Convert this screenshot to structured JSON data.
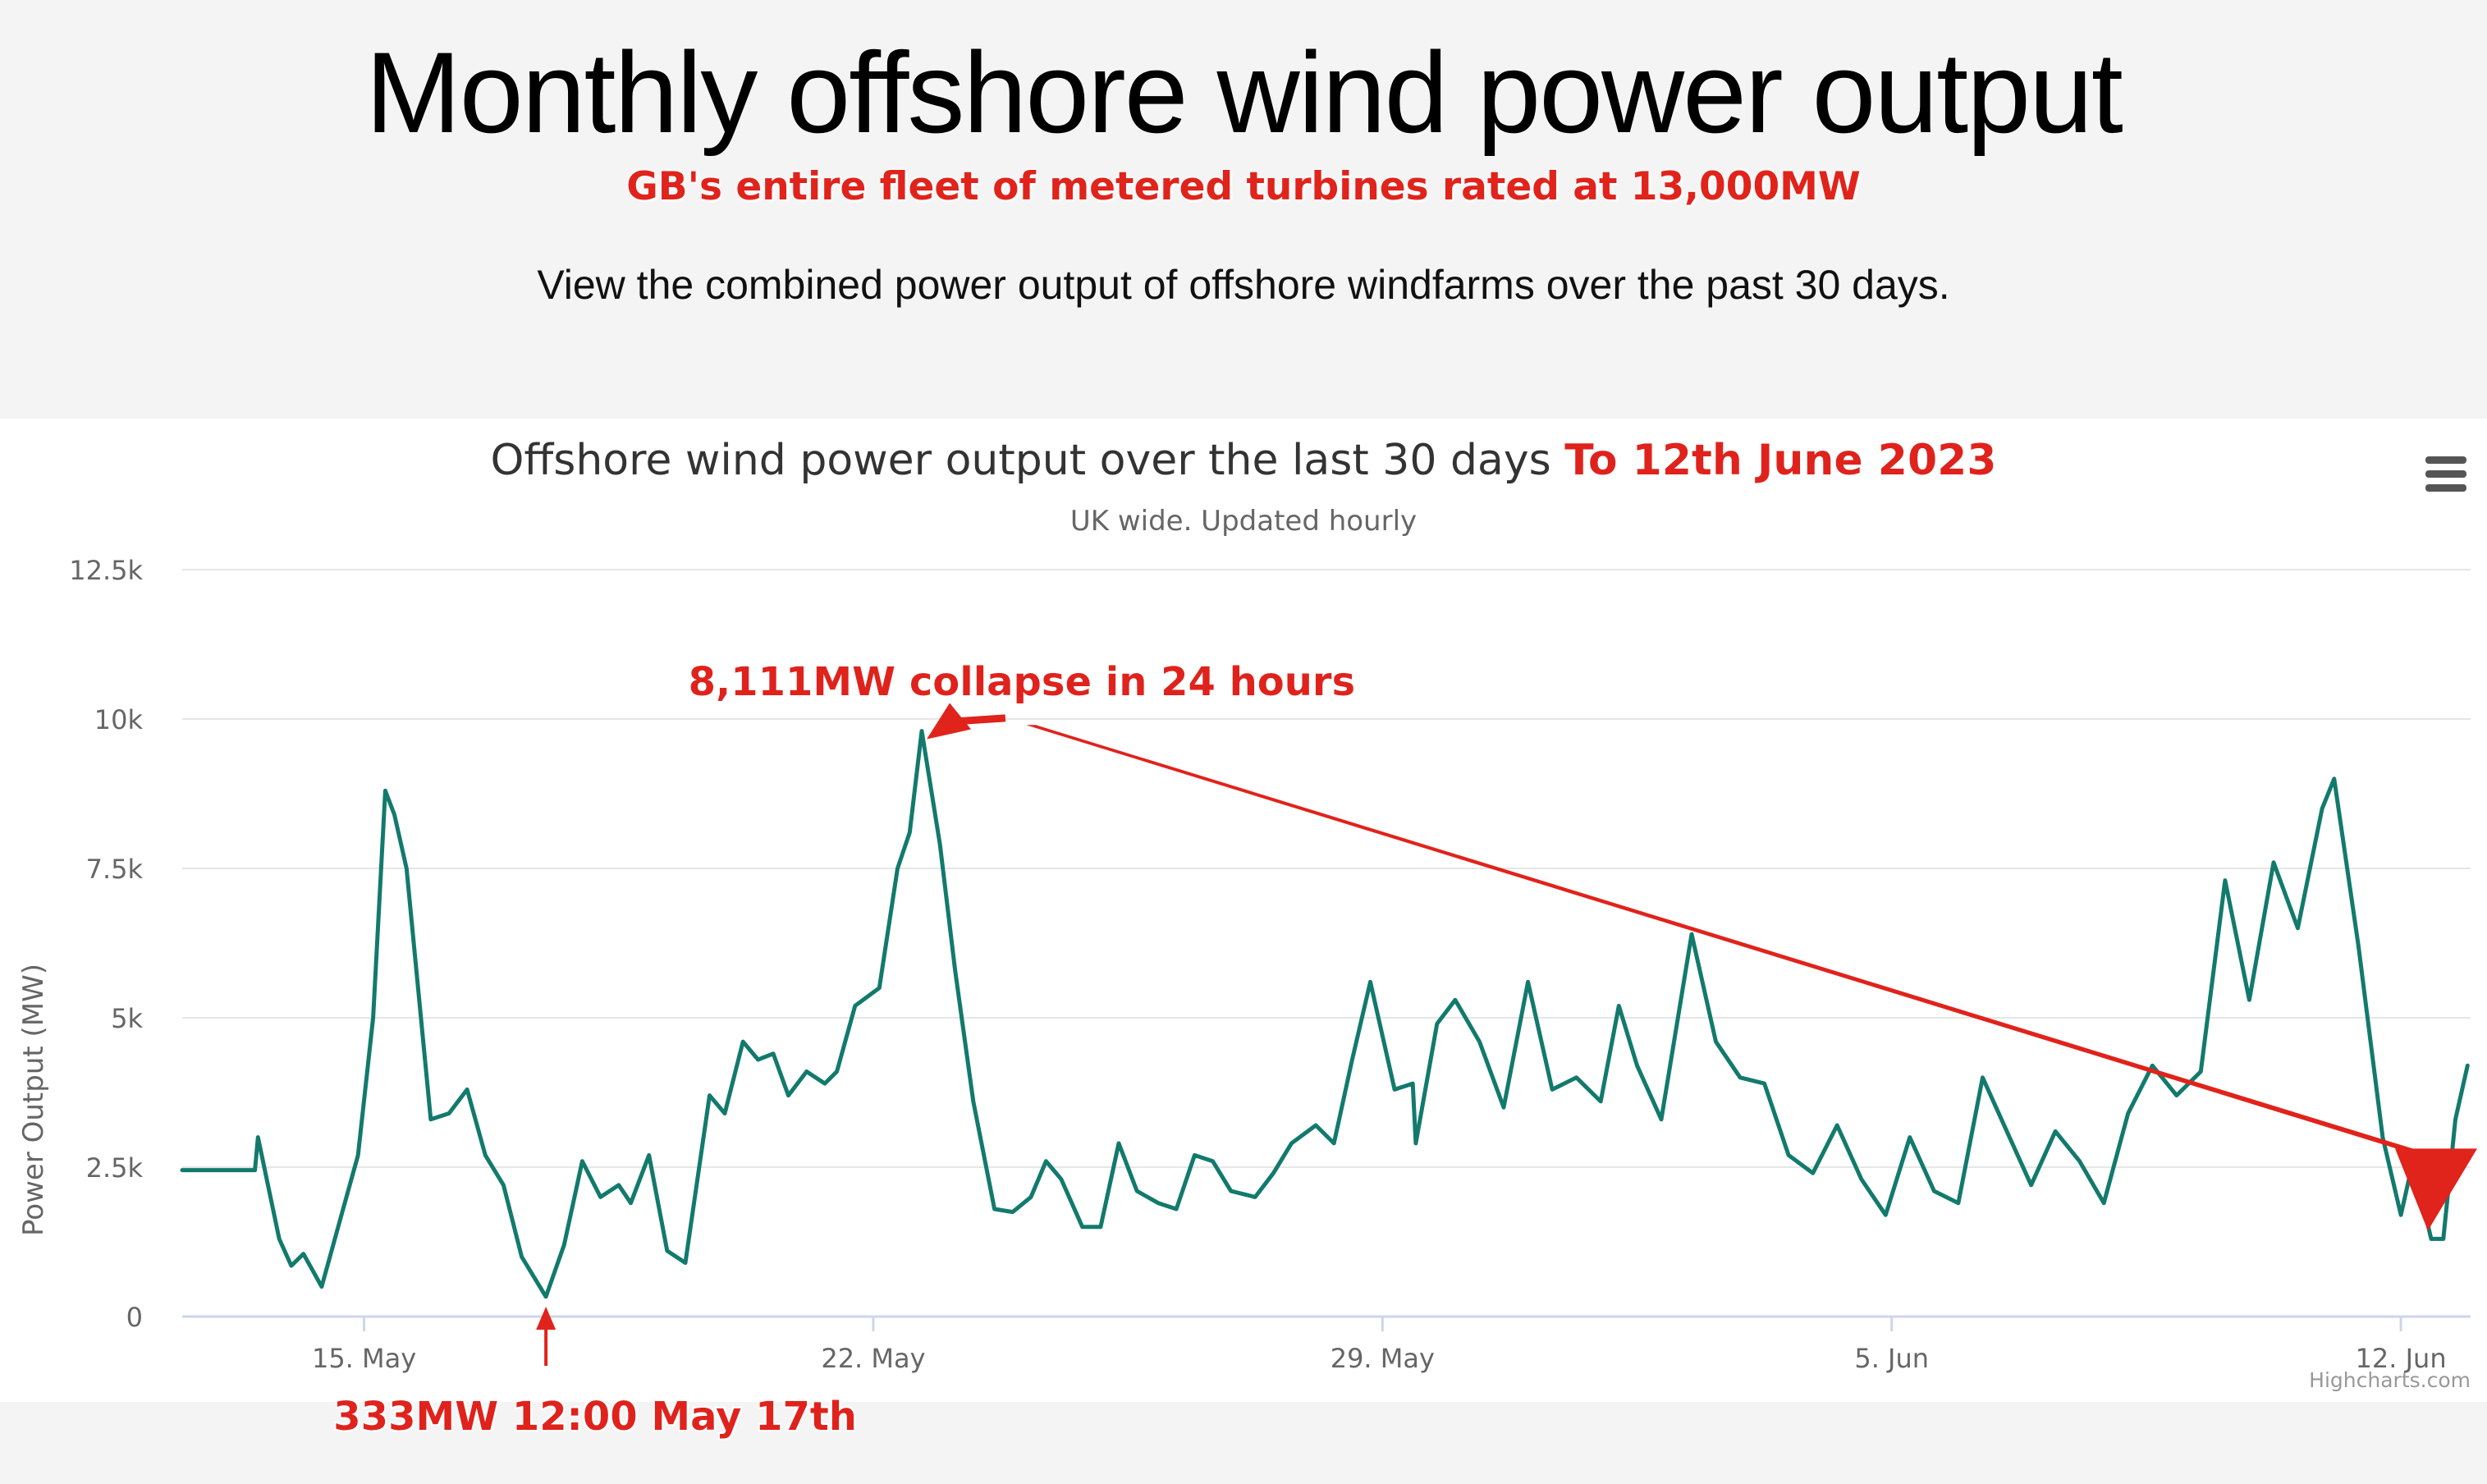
{
  "page": {
    "title": "Monthly offshore wind power output",
    "subtitle": "GB's entire fleet of metered turbines rated at 13,000MW",
    "intro": "View the combined power output of offshore windfarms over the past 30 days."
  },
  "chart_data": {
    "type": "line",
    "title": "Offshore wind power output over the last 30 days",
    "title_suffix": "To 12th June 2023",
    "subtitle": "UK wide. Updated hourly",
    "ylabel": "Power Output (MW)",
    "xlabel": "",
    "ylim": [
      0,
      12500
    ],
    "xlim": [
      "2023-05-12T12:00",
      "2023-06-12T23:00"
    ],
    "x_ticks": [
      "2023-05-15",
      "2023-05-22",
      "2023-05-29",
      "2023-06-05",
      "2023-06-12"
    ],
    "x_tick_labels": [
      "15. May",
      "22. May",
      "29. May",
      "5. Jun",
      "12. Jun"
    ],
    "y_ticks": [
      0,
      2500,
      5000,
      7500,
      10000,
      12500
    ],
    "y_tick_labels": [
      "0",
      "2.5k",
      "5k",
      "7.5k",
      "10k",
      "12.5k"
    ],
    "grid": true,
    "series": [
      {
        "name": "",
        "color": "#127a6d",
        "points": [
          [
            "2023-05-12T12:00",
            2450
          ],
          [
            "2023-05-13T12:00",
            2450
          ],
          [
            "2023-05-13T13:00",
            3000
          ],
          [
            "2023-05-13T20:00",
            1300
          ],
          [
            "2023-05-14T00:00",
            850
          ],
          [
            "2023-05-14T04:00",
            1050
          ],
          [
            "2023-05-14T10:00",
            500
          ],
          [
            "2023-05-14T16:00",
            1600
          ],
          [
            "2023-05-14T22:00",
            2700
          ],
          [
            "2023-05-15T03:00",
            5000
          ],
          [
            "2023-05-15T07:00",
            8800
          ],
          [
            "2023-05-15T10:00",
            8400
          ],
          [
            "2023-05-15T14:00",
            7500
          ],
          [
            "2023-05-15T22:00",
            3300
          ],
          [
            "2023-05-16T04:00",
            3400
          ],
          [
            "2023-05-16T10:00",
            3800
          ],
          [
            "2023-05-16T16:00",
            2700
          ],
          [
            "2023-05-16T22:00",
            2200
          ],
          [
            "2023-05-17T04:00",
            1000
          ],
          [
            "2023-05-17T12:00",
            333
          ],
          [
            "2023-05-17T18:00",
            1200
          ],
          [
            "2023-05-18T00:00",
            2600
          ],
          [
            "2023-05-18T06:00",
            2000
          ],
          [
            "2023-05-18T12:00",
            2200
          ],
          [
            "2023-05-18T16:00",
            1900
          ],
          [
            "2023-05-18T22:00",
            2700
          ],
          [
            "2023-05-19T04:00",
            1100
          ],
          [
            "2023-05-19T10:00",
            900
          ],
          [
            "2023-05-19T18:00",
            3700
          ],
          [
            "2023-05-19T23:00",
            3400
          ],
          [
            "2023-05-20T05:00",
            4600
          ],
          [
            "2023-05-20T10:00",
            4300
          ],
          [
            "2023-05-20T15:00",
            4400
          ],
          [
            "2023-05-20T20:00",
            3700
          ],
          [
            "2023-05-21T02:00",
            4100
          ],
          [
            "2023-05-21T08:00",
            3900
          ],
          [
            "2023-05-21T12:00",
            4100
          ],
          [
            "2023-05-21T18:00",
            5200
          ],
          [
            "2023-05-22T02:00",
            5500
          ],
          [
            "2023-05-22T08:00",
            7500
          ],
          [
            "2023-05-22T12:00",
            8100
          ],
          [
            "2023-05-22T16:00",
            9800
          ],
          [
            "2023-05-22T22:00",
            7900
          ],
          [
            "2023-05-23T03:00",
            5800
          ],
          [
            "2023-05-23T09:00",
            3600
          ],
          [
            "2023-05-23T16:00",
            1800
          ],
          [
            "2023-05-23T22:00",
            1750
          ],
          [
            "2023-05-24T04:00",
            2000
          ],
          [
            "2023-05-24T09:00",
            2600
          ],
          [
            "2023-05-24T14:00",
            2300
          ],
          [
            "2023-05-24T21:00",
            1500
          ],
          [
            "2023-05-25T03:00",
            1500
          ],
          [
            "2023-05-25T09:00",
            2900
          ],
          [
            "2023-05-25T15:00",
            2100
          ],
          [
            "2023-05-25T22:00",
            1900
          ],
          [
            "2023-05-26T04:00",
            1800
          ],
          [
            "2023-05-26T10:00",
            2700
          ],
          [
            "2023-05-26T16:00",
            2600
          ],
          [
            "2023-05-26T22:00",
            2100
          ],
          [
            "2023-05-27T06:00",
            2000
          ],
          [
            "2023-05-27T12:00",
            2400
          ],
          [
            "2023-05-27T18:00",
            2900
          ],
          [
            "2023-05-28T02:00",
            3200
          ],
          [
            "2023-05-28T08:00",
            2900
          ],
          [
            "2023-05-28T14:00",
            4300
          ],
          [
            "2023-05-28T20:00",
            5600
          ],
          [
            "2023-05-29T04:00",
            3800
          ],
          [
            "2023-05-29T10:00",
            3900
          ],
          [
            "2023-05-29T11:00",
            2900
          ],
          [
            "2023-05-29T18:00",
            4900
          ],
          [
            "2023-05-30T00:00",
            5300
          ],
          [
            "2023-05-30T08:00",
            4600
          ],
          [
            "2023-05-30T16:00",
            3500
          ],
          [
            "2023-05-31T00:00",
            5600
          ],
          [
            "2023-05-31T08:00",
            3800
          ],
          [
            "2023-05-31T16:00",
            4000
          ],
          [
            "2023-06-01T00:00",
            3600
          ],
          [
            "2023-06-01T06:00",
            5200
          ],
          [
            "2023-06-01T12:00",
            4200
          ],
          [
            "2023-06-01T20:00",
            3300
          ],
          [
            "2023-06-02T06:00",
            6400
          ],
          [
            "2023-06-02T14:00",
            4600
          ],
          [
            "2023-06-02T22:00",
            4000
          ],
          [
            "2023-06-03T06:00",
            3900
          ],
          [
            "2023-06-03T14:00",
            2700
          ],
          [
            "2023-06-03T22:00",
            2400
          ],
          [
            "2023-06-04T06:00",
            3200
          ],
          [
            "2023-06-04T14:00",
            2300
          ],
          [
            "2023-06-04T22:00",
            1700
          ],
          [
            "2023-06-05T06:00",
            3000
          ],
          [
            "2023-06-05T14:00",
            2100
          ],
          [
            "2023-06-05T22:00",
            1900
          ],
          [
            "2023-06-06T06:00",
            4000
          ],
          [
            "2023-06-06T14:00",
            3100
          ],
          [
            "2023-06-06T22:00",
            2200
          ],
          [
            "2023-06-07T06:00",
            3100
          ],
          [
            "2023-06-07T14:00",
            2600
          ],
          [
            "2023-06-07T22:00",
            1900
          ],
          [
            "2023-06-08T06:00",
            3400
          ],
          [
            "2023-06-08T14:00",
            4200
          ],
          [
            "2023-06-08T22:00",
            3700
          ],
          [
            "2023-06-09T06:00",
            4100
          ],
          [
            "2023-06-09T14:00",
            7300
          ],
          [
            "2023-06-09T22:00",
            5300
          ],
          [
            "2023-06-10T06:00",
            7600
          ],
          [
            "2023-06-10T14:00",
            6500
          ],
          [
            "2023-06-10T22:00",
            8500
          ],
          [
            "2023-06-11T02:00",
            9000
          ],
          [
            "2023-06-11T10:00",
            6200
          ],
          [
            "2023-06-11T18:00",
            3000
          ],
          [
            "2023-06-12T00:00",
            1700
          ],
          [
            "2023-06-12T04:00",
            2600
          ],
          [
            "2023-06-12T10:00",
            1300
          ],
          [
            "2023-06-12T14:00",
            1300
          ],
          [
            "2023-06-12T18:00",
            3300
          ],
          [
            "2023-06-12T22:00",
            4200
          ]
        ]
      }
    ],
    "annotations": [
      {
        "text": "8,111MW collapse in 24 hours",
        "x": "2023-05-24T01:00",
        "y": 10400,
        "color": "#e0231b"
      },
      {
        "text": "333MW 12:00 May 17th",
        "x": "2023-05-17T12:00",
        "y": 333,
        "color": "#e0231b"
      }
    ],
    "credits": "Highcharts.com"
  }
}
